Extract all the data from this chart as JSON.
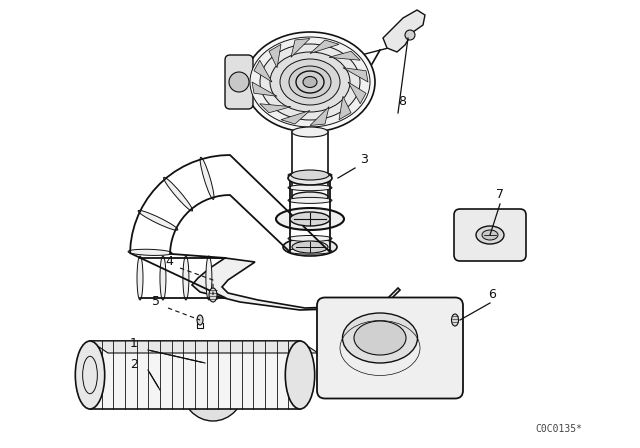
{
  "background_color": "#ffffff",
  "line_color": "#111111",
  "watermark": "C0C0135*",
  "figsize": [
    6.4,
    4.48
  ],
  "dpi": 100
}
